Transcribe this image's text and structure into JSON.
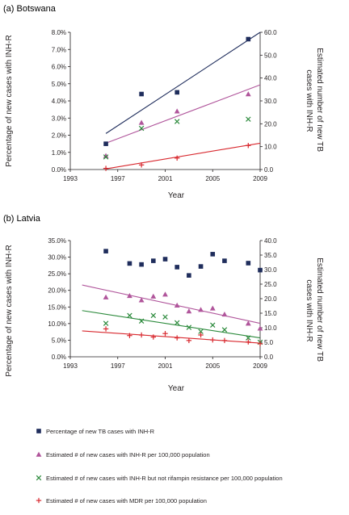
{
  "chart_data": [
    {
      "type": "scatter",
      "panel_title": "(a) Botswana",
      "xlabel": "Year",
      "ylabel_left": "Percentage of new cases with INH-R",
      "ylabel_right": "Estimated number of new TB cases with INH-R",
      "ylabel_right_lines": [
        "Estimated number of new TB",
        "cases with INH-R"
      ],
      "xlim": [
        1993,
        2009
      ],
      "ylim_left": [
        0,
        8
      ],
      "ylim_right": [
        0,
        60
      ],
      "x_ticks": [
        "1993",
        "1997",
        "2001",
        "2005",
        "2009"
      ],
      "y_ticks_left": [
        "0.0%",
        "1.0%",
        "2.0%",
        "3.0%",
        "4.0%",
        "5.0%",
        "6.0%",
        "7.0%",
        "8.0%"
      ],
      "y_ticks_right": [
        "0.0",
        "10.0",
        "20.0",
        "30.0",
        "40.0",
        "50.0",
        "60.0"
      ],
      "series": [
        {
          "name": "Percentage of new TB cases with INH-R",
          "axis": "left",
          "marker": "square",
          "color": "#1f2d5c",
          "x": [
            1996,
            1999,
            2002,
            2008
          ],
          "y": [
            1.5,
            4.4,
            4.5,
            7.6
          ],
          "trend": [
            [
              1996,
              2.1
            ],
            [
              2009,
              8.0
            ]
          ]
        },
        {
          "name": "Estimated # of new cases with INH-R per 100,000 population",
          "axis": "right",
          "marker": "triangle",
          "color": "#b0559b",
          "x": [
            1996,
            1999,
            2002,
            2008
          ],
          "y": [
            6.0,
            20.5,
            25.5,
            33.0
          ],
          "trend": [
            [
              1996,
              11.5
            ],
            [
              2009,
              37.0
            ]
          ]
        },
        {
          "name": "Estimated # of new cases with INH-R but not rifampin resistance per 100,000 population",
          "axis": "right",
          "marker": "x",
          "color": "#2c8a3c",
          "x": [
            1996,
            1999,
            2002,
            2008
          ],
          "y": [
            5.5,
            18.0,
            21.0,
            22.0
          ],
          "trend": null
        },
        {
          "name": "Estimated # of new cases with MDR per 100,000 population",
          "axis": "right",
          "marker": "plus",
          "color": "#d8282e",
          "x": [
            1996,
            1999,
            2002,
            2008
          ],
          "y": [
            0.5,
            2.0,
            5.0,
            10.5
          ],
          "trend": [
            [
              1996,
              0.3
            ],
            [
              2009,
              11.5
            ]
          ]
        }
      ]
    },
    {
      "type": "scatter",
      "panel_title": "(b) Latvia",
      "xlabel": "Year",
      "ylabel_left": "Percentage of new cases with INH-R",
      "ylabel_right": "Estimated number of new TB cases with INH-R",
      "ylabel_right_lines": [
        "Estimated number of new TB",
        "cases with INH-R"
      ],
      "xlim": [
        1993,
        2009
      ],
      "ylim_left": [
        0,
        35
      ],
      "ylim_right": [
        0,
        40
      ],
      "x_ticks": [
        "1993",
        "1997",
        "2001",
        "2005",
        "2009"
      ],
      "y_ticks_left": [
        "0.0%",
        "5.0%",
        "10.0%",
        "15.0%",
        "20.0%",
        "25.0%",
        "30.0%",
        "35.0%"
      ],
      "y_ticks_right": [
        "0.0",
        "5.0",
        "10.0",
        "15.0",
        "20.0",
        "25.0",
        "30.0",
        "35.0",
        "40.0"
      ],
      "series": [
        {
          "name": "Percentage of new TB cases with INH-R",
          "axis": "left",
          "marker": "square",
          "color": "#1f2d5c",
          "x": [
            1996,
            1998,
            1999,
            2000,
            2001,
            2002,
            2003,
            2004,
            2005,
            2006,
            2008,
            2009
          ],
          "y": [
            31.8,
            28.1,
            27.8,
            28.9,
            29.4,
            27.0,
            24.5,
            27.2,
            30.9,
            28.9,
            28.2,
            26.1
          ],
          "trend": null
        },
        {
          "name": "Estimated # of new cases with INH-R per 100,000 population",
          "axis": "right",
          "marker": "triangle",
          "color": "#b0559b",
          "x": [
            1996,
            1998,
            1999,
            2000,
            2001,
            2002,
            2003,
            2004,
            2005,
            2006,
            2008,
            2009
          ],
          "y": [
            20.5,
            21.0,
            19.5,
            20.8,
            21.5,
            17.7,
            15.7,
            16.2,
            16.7,
            14.6,
            11.5,
            9.8
          ],
          "trend": [
            [
              1994,
              24.7
            ],
            [
              2009,
              11.5
            ]
          ]
        },
        {
          "name": "Estimated # of new cases with INH-R but not rifampin resistance per 100,000 population",
          "axis": "right",
          "marker": "x",
          "color": "#2c8a3c",
          "x": [
            1996,
            1998,
            1999,
            2000,
            2001,
            2002,
            2003,
            2004,
            2005,
            2006,
            2008,
            2009
          ],
          "y": [
            11.5,
            14.2,
            12.3,
            14.2,
            13.7,
            11.7,
            10.1,
            8.7,
            10.9,
            9.3,
            6.5,
            5.0
          ],
          "trend": [
            [
              1994,
              15.9
            ],
            [
              2009,
              6.5
            ]
          ]
        },
        {
          "name": "Estimated # of new cases with MDR per 100,000 population",
          "axis": "right",
          "marker": "plus",
          "color": "#d8282e",
          "x": [
            1996,
            1998,
            1999,
            2000,
            2001,
            2002,
            2003,
            2004,
            2005,
            2006,
            2008,
            2009
          ],
          "y": [
            9.6,
            7.3,
            7.5,
            6.8,
            8.0,
            6.5,
            5.6,
            7.5,
            5.8,
            5.6,
            5.1,
            4.5
          ],
          "trend": [
            [
              1994,
              8.9
            ],
            [
              2009,
              4.7
            ]
          ]
        }
      ]
    }
  ],
  "legend": {
    "items": [
      {
        "label": "Percentage of new TB cases with INH-R",
        "marker": "square",
        "color": "#1f2d5c"
      },
      {
        "label": "Estimated # of new cases with INH-R per 100,000 population",
        "marker": "triangle",
        "color": "#b0559b"
      },
      {
        "label": "Estimated # of new cases with INH-R but not rifampin resistance per 100,000 population",
        "marker": "x",
        "color": "#2c8a3c"
      },
      {
        "label": "Estimated # of new cases with MDR per 100,000 population",
        "marker": "plus",
        "color": "#d8282e"
      }
    ]
  }
}
